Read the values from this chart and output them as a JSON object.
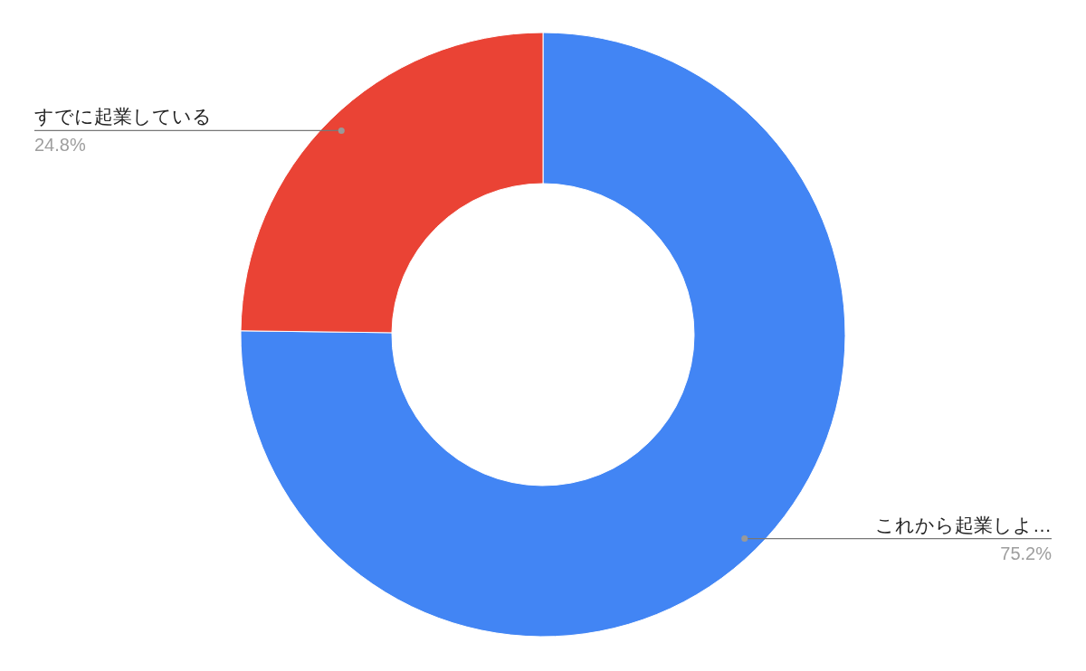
{
  "chart_data": {
    "type": "donut",
    "categories": [
      "これから起業しよ…",
      "すでに起業している"
    ],
    "values": [
      75.2,
      24.8
    ],
    "colors": [
      "#4285f4",
      "#ea4335"
    ],
    "value_labels": [
      "75.2%",
      "24.8%"
    ]
  }
}
